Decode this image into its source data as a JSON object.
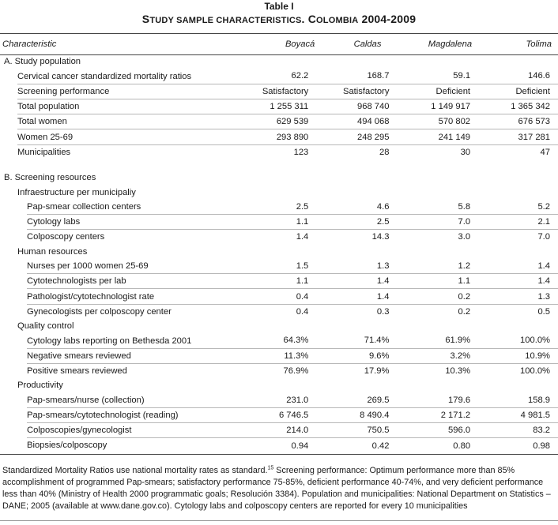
{
  "caption": {
    "label": "Table I",
    "title_cap1": "S",
    "title_small1": "TUDY SAMPLE CHARACTERISTICS",
    "title_mid": ". C",
    "title_small2": "OLOMBIA",
    "title_years": " 2004-2009"
  },
  "columns": {
    "characteristic": "Characteristic",
    "c1": "Boyacá",
    "c2": "Caldas",
    "c3": "Magdalena",
    "c4": "Tolima"
  },
  "rows": [
    {
      "type": "section",
      "label": "A. Study population"
    },
    {
      "type": "data",
      "label": "Cervical cancer standardized mortality ratios",
      "v": [
        "62.2",
        "168.7",
        "59.1",
        "146.6"
      ]
    },
    {
      "type": "data",
      "label": "Screening performance",
      "v": [
        "Satisfactory",
        "Satisfactory",
        "Deficient",
        "Deficient"
      ]
    },
    {
      "type": "data",
      "label": "Total population",
      "v": [
        "1 255 311",
        "968 740",
        "1 149 917",
        "1 365 342"
      ]
    },
    {
      "type": "data",
      "label": "Total women",
      "v": [
        "629 539",
        "494 068",
        "570 802",
        "676 573"
      ]
    },
    {
      "type": "data",
      "label": "Women 25-69",
      "v": [
        "293 890",
        "248 295",
        "241 149",
        "317 281"
      ]
    },
    {
      "type": "data",
      "label": "Municipalities",
      "v": [
        "123",
        "28",
        "30",
        "47"
      ],
      "last": true
    },
    {
      "type": "spacer"
    },
    {
      "type": "section",
      "label": "B.   Screening resources"
    },
    {
      "type": "group",
      "label": "Infraestructure per municipaliy"
    },
    {
      "type": "sub",
      "label": "Pap-smear collection centers",
      "v": [
        "2.5",
        "4.6",
        "5.8",
        "5.2"
      ]
    },
    {
      "type": "sub",
      "label": "Cytology labs",
      "v": [
        "1.1",
        "2.5",
        "7.0",
        "2.1"
      ]
    },
    {
      "type": "sub",
      "label": "Colposcopy centers",
      "v": [
        "1.4",
        "14.3",
        "3.0",
        "7.0"
      ],
      "last": true
    },
    {
      "type": "group",
      "label": "Human resources"
    },
    {
      "type": "sub",
      "label": "Nurses per 1000 women 25-69",
      "v": [
        "1.5",
        "1.3",
        "1.2",
        "1.4"
      ]
    },
    {
      "type": "sub",
      "label": "Cytotechnologists per lab",
      "v": [
        "1.1",
        "1.4",
        "1.1",
        "1.4"
      ]
    },
    {
      "type": "sub",
      "label": "Pathologist/cytotechnologist rate",
      "v": [
        "0.4",
        "1.4",
        "0.2",
        "1.3"
      ]
    },
    {
      "type": "sub",
      "label": "Gynecologists per colposcopy center",
      "v": [
        "0.4",
        "0.3",
        "0.2",
        "0.5"
      ],
      "last": true
    },
    {
      "type": "group",
      "label": "Quality control"
    },
    {
      "type": "sub",
      "label": "Cytology labs reporting on Bethesda 2001",
      "v": [
        "64.3%",
        "71.4%",
        "61.9%",
        "100.0%"
      ]
    },
    {
      "type": "sub",
      "label": "Negative smears reviewed",
      "v": [
        "11.3%",
        "9.6%",
        "3.2%",
        "10.9%"
      ]
    },
    {
      "type": "sub",
      "label": "Positive smears reviewed",
      "v": [
        "76.9%",
        "17.9%",
        "10.3%",
        "100.0%"
      ],
      "last": true
    },
    {
      "type": "group",
      "label": "Productivity"
    },
    {
      "type": "sub",
      "label": "Pap-smears/nurse (collection)",
      "v": [
        "231.0",
        "269.5",
        "179.6",
        "158.9"
      ]
    },
    {
      "type": "sub",
      "label": "Pap-smears/cytotechnologist (reading)",
      "v": [
        "6 746.5",
        "8 490.4",
        "2 171.2",
        "4 981.5"
      ]
    },
    {
      "type": "sub",
      "label": "Colposcopies/gynecologist",
      "v": [
        "214.0",
        "750.5",
        "596.0",
        "83.2"
      ]
    },
    {
      "type": "sub",
      "label": "Biopsies/colposcopy",
      "v": [
        "0.94",
        "0.42",
        "0.80",
        "0.98"
      ],
      "last": true
    }
  ],
  "footnote": {
    "part1": "Standardized Mortality Ratios use national mortality rates as standard.",
    "ref": "15",
    "part2": " Screening performance: Optimum performance more than 85% accomplishment of programmed Pap-smears; satisfactory performance 75-85%, deficient performance 40-74%, and very deficient performance less than 40% (Ministry of Health 2000 programmatic goals; Resolución 3384). Population and municipalities: National Department on Statistics – DANE; 2005 (available at www.dane.gov.co). Cytology labs and colposcopy centers are reported for every 10 municipalities"
  }
}
